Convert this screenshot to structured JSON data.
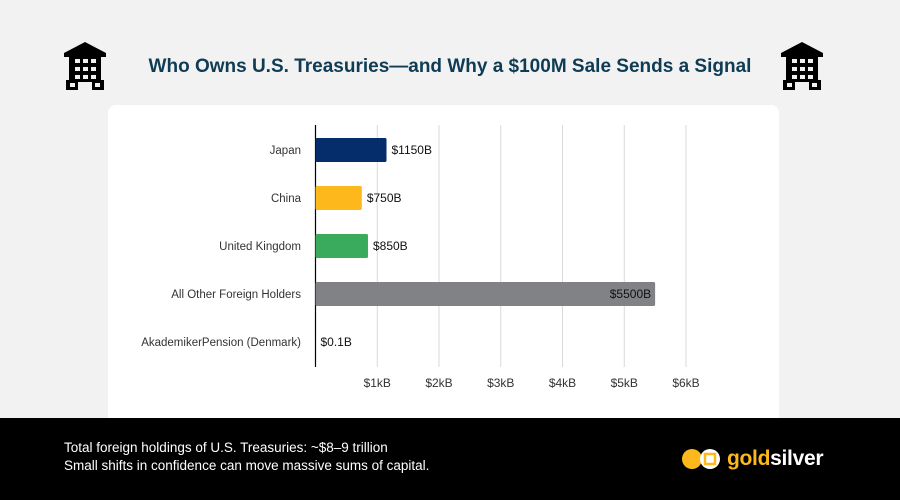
{
  "header": {
    "title": "Who Owns U.S. Treasuries—and Why a $100M Sale Sends a Signal",
    "icon": "building-icon"
  },
  "chart_data": {
    "type": "bar",
    "orientation": "horizontal",
    "categories": [
      "Japan",
      "China",
      "United Kingdom",
      "All Other Foreign Holders",
      "AkademikerPension (Denmark)"
    ],
    "values": [
      1150,
      750,
      850,
      5500,
      0.1
    ],
    "data_labels": [
      "$1150B",
      "$750B",
      "$850B",
      "$5500B",
      "$0.1B"
    ],
    "colors": [
      "#062d6b",
      "#fdb81b",
      "#3aab5c",
      "#808285",
      "#808285"
    ],
    "xlim": [
      0,
      6000
    ],
    "xticks": [
      1000,
      2000,
      3000,
      4000,
      5000,
      6000
    ],
    "xtick_labels": [
      "$1kB",
      "$2kB",
      "$3kB",
      "$4kB",
      "$5kB",
      "$6kB"
    ],
    "grid": "vertical"
  },
  "footer": {
    "line1": "Total foreign holdings of U.S. Treasuries: ~$8–9 trillion",
    "line2": "Small shifts in confidence can move massive sums of capital.",
    "logo_gold": "gold",
    "logo_silver": "silver"
  }
}
